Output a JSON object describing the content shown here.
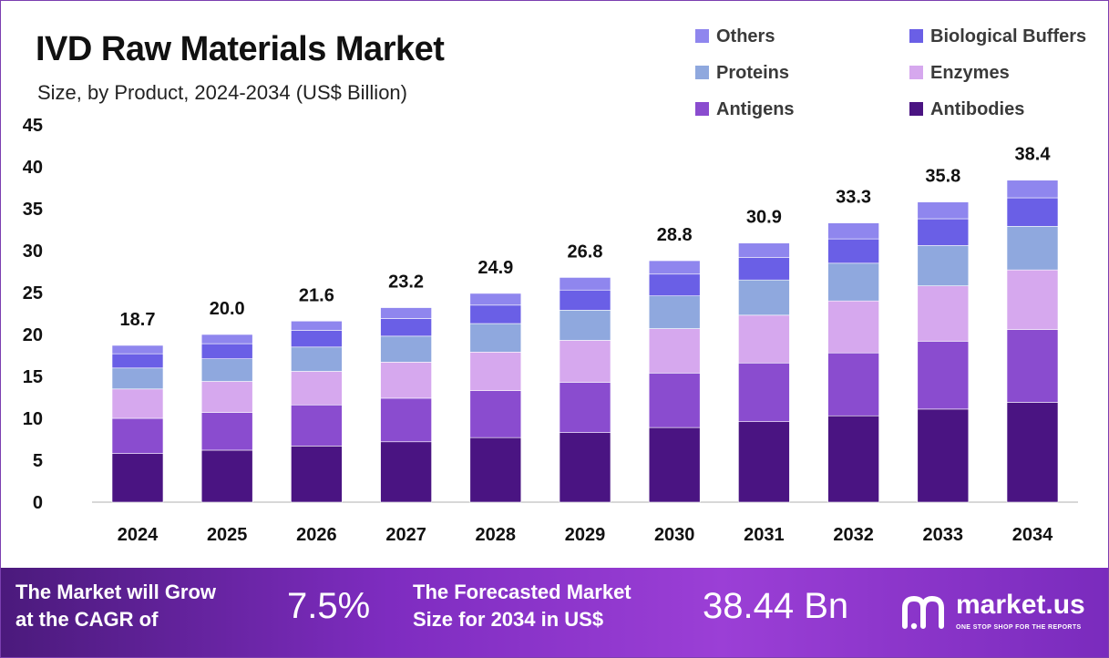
{
  "header": {
    "title": "IVD Raw Materials Market",
    "subtitle": "Size, by Product, 2024-2034 (US$ Billion)"
  },
  "chart_data": {
    "type": "bar",
    "stacked": true,
    "title": "IVD Raw Materials Market",
    "subtitle": "Size, by Product, 2024-2034 (US$ Billion)",
    "xlabel": "",
    "ylabel": "",
    "ylim": [
      0,
      45
    ],
    "yticks": [
      "0",
      "5",
      "10",
      "15",
      "20",
      "25",
      "30",
      "35",
      "40",
      "45"
    ],
    "grid": false,
    "legend_position": "top-right",
    "categories": [
      "2024",
      "2025",
      "2026",
      "2027",
      "2028",
      "2029",
      "2030",
      "2031",
      "2032",
      "2033",
      "2034"
    ],
    "totals": [
      18.7,
      20.0,
      21.6,
      23.2,
      24.9,
      26.8,
      28.8,
      30.9,
      33.3,
      35.8,
      38.4
    ],
    "total_labels": [
      "18.7",
      "20.0",
      "21.6",
      "23.2",
      "24.9",
      "26.8",
      "28.8",
      "30.9",
      "33.3",
      "35.8",
      "38.4"
    ],
    "series": [
      {
        "name": "Antibodies",
        "color": "#4a1482",
        "values": [
          5.8,
          6.2,
          6.7,
          7.2,
          7.7,
          8.3,
          8.9,
          9.6,
          10.3,
          11.1,
          11.9
        ]
      },
      {
        "name": "Antigens",
        "color": "#8a4ccf",
        "values": [
          4.2,
          4.5,
          4.9,
          5.2,
          5.6,
          6.0,
          6.5,
          7.0,
          7.5,
          8.1,
          8.7
        ]
      },
      {
        "name": "Enzymes",
        "color": "#d6a8ee",
        "values": [
          3.5,
          3.7,
          4.0,
          4.3,
          4.6,
          5.0,
          5.3,
          5.7,
          6.2,
          6.6,
          7.1
        ]
      },
      {
        "name": "Proteins",
        "color": "#8fa8de",
        "values": [
          2.5,
          2.7,
          2.9,
          3.1,
          3.4,
          3.6,
          3.9,
          4.2,
          4.5,
          4.8,
          5.2
        ]
      },
      {
        "name": "Biological Buffers",
        "color": "#6a5fe6",
        "values": [
          1.7,
          1.8,
          2.0,
          2.1,
          2.2,
          2.4,
          2.6,
          2.7,
          2.9,
          3.2,
          3.4
        ]
      },
      {
        "name": "Others",
        "color": "#8f86ee",
        "values": [
          1.0,
          1.1,
          1.1,
          1.3,
          1.4,
          1.5,
          1.6,
          1.7,
          1.9,
          2.0,
          2.1
        ]
      }
    ]
  },
  "legend": {
    "items": [
      {
        "label": "Others",
        "color": "#8f86ee"
      },
      {
        "label": "Biological Buffers",
        "color": "#6a5fe6"
      },
      {
        "label": "Proteins",
        "color": "#8fa8de"
      },
      {
        "label": "Enzymes",
        "color": "#d6a8ee"
      },
      {
        "label": "Antigens",
        "color": "#8a4ccf"
      },
      {
        "label": "Antibodies",
        "color": "#4a1482"
      }
    ]
  },
  "footer": {
    "cagr_line1": "The Market will Grow",
    "cagr_line2": "at the CAGR of",
    "cagr_value": "7.5%",
    "forecast_line1": "The Forecasted Market",
    "forecast_line2": "Size for 2034 in US$",
    "forecast_value": "38.44 Bn",
    "brand_name": "market.us",
    "brand_tagline": "ONE STOP SHOP FOR THE REPORTS"
  }
}
